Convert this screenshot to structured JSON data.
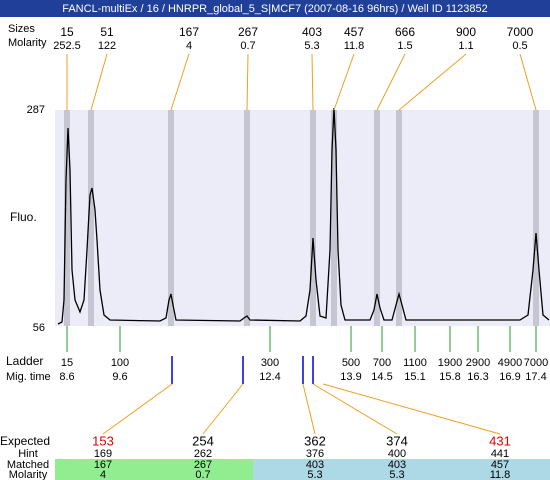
{
  "header": {
    "title": "FANCL-multiEx / 16 / HNRPR_global_5_S|MCF7 (2007-08-16 96hrs) / Well ID 1123852"
  },
  "peaks": {
    "size_label": "Sizes",
    "molarity_label": "Molarity",
    "items": [
      {
        "size": "15",
        "molarity": "252.5"
      },
      {
        "size": "51",
        "molarity": "122"
      },
      {
        "size": "167",
        "molarity": "4"
      },
      {
        "size": "267",
        "molarity": "0.7"
      },
      {
        "size": "403",
        "molarity": "5.3"
      },
      {
        "size": "457",
        "molarity": "11.8"
      },
      {
        "size": "666",
        "molarity": "1.5"
      },
      {
        "size": "900",
        "molarity": "1.1"
      },
      {
        "size": "7000",
        "molarity": "0.5"
      }
    ]
  },
  "plot": {
    "y_label": "Fluo.",
    "y_top": "287",
    "y_bottom": "56"
  },
  "ladder": {
    "label": "Ladder",
    "time_label": "Mig. time",
    "items": [
      {
        "size": "15",
        "time": "8.6"
      },
      {
        "size": "100",
        "time": "9.6"
      },
      {
        "size": "300",
        "time": "12.4"
      },
      {
        "size": "500",
        "time": "13.9"
      },
      {
        "size": "700",
        "time": "14.5"
      },
      {
        "size": "1100",
        "time": "15.1"
      },
      {
        "size": "1900",
        "time": "15.8"
      },
      {
        "size": "2900",
        "time": "16.3"
      },
      {
        "size": "4900",
        "time": "16.9"
      },
      {
        "size": "7000",
        "time": "17.4"
      }
    ]
  },
  "expected": {
    "labels": [
      "Expected",
      "Hint",
      "Matched",
      "Molarity"
    ],
    "columns": [
      {
        "expected": "153",
        "hint": "169",
        "matched": "167",
        "molarity": "4",
        "color": "#e00000"
      },
      {
        "expected": "254",
        "hint": "262",
        "matched": "267",
        "molarity": "0.7",
        "color": "#000000"
      },
      {
        "expected": "362",
        "hint": "376",
        "matched": "403",
        "molarity": "5.3",
        "color": "#000000"
      },
      {
        "expected": "374",
        "hint": "400",
        "matched": "403",
        "molarity": "5.3",
        "color": "#000000"
      },
      {
        "expected": "431",
        "hint": "441",
        "matched": "457",
        "molarity": "11.8",
        "color": "#e00000"
      }
    ]
  }
}
